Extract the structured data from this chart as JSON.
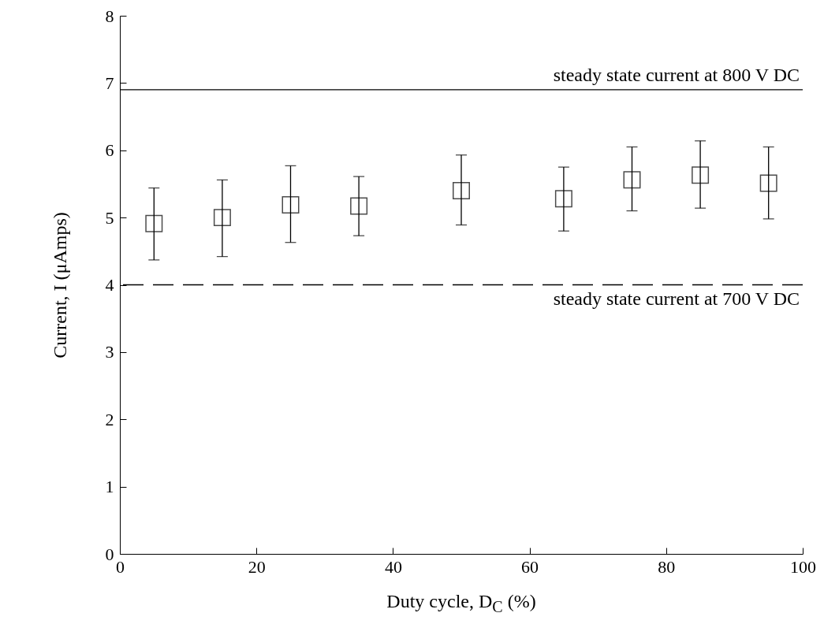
{
  "chart_data": {
    "type": "scatter",
    "xlabel": "Duty cycle, D$_{C}$ (%)",
    "ylabel": "Current, I (μAmps)",
    "x": [
      5,
      15,
      25,
      35,
      50,
      65,
      75,
      85,
      95
    ],
    "series": [
      {
        "color": "#000000",
        "values": [
          4.91,
          5.0,
          5.19,
          5.17,
          5.4,
          5.28,
          5.56,
          5.63,
          5.51
        ],
        "errors": [
          [
            4.37,
            5.44
          ],
          [
            4.42,
            5.56
          ],
          [
            4.63,
            5.77
          ],
          [
            4.73,
            5.61
          ],
          [
            4.89,
            5.93
          ],
          [
            4.8,
            5.75
          ],
          [
            5.1,
            6.05
          ],
          [
            5.14,
            6.14
          ],
          [
            4.98,
            6.05
          ]
        ]
      }
    ],
    "marker": "square",
    "xlim": [
      0,
      100
    ],
    "xticks": [
      0,
      20,
      40,
      60,
      80,
      100
    ],
    "ylim": [
      0,
      8
    ],
    "yticks": [
      0,
      1,
      2,
      3,
      4,
      5,
      6,
      7,
      8
    ],
    "ref_lines": [
      {
        "axis": "y",
        "value": 6.9,
        "label": "steady state current at 800 V DC",
        "color": "#000000",
        "line_style": "solid"
      },
      {
        "axis": "y",
        "value": 4.0,
        "label": "steady state current at 700 V DC",
        "color": "#000000",
        "line_style": "dashed"
      }
    ]
  }
}
